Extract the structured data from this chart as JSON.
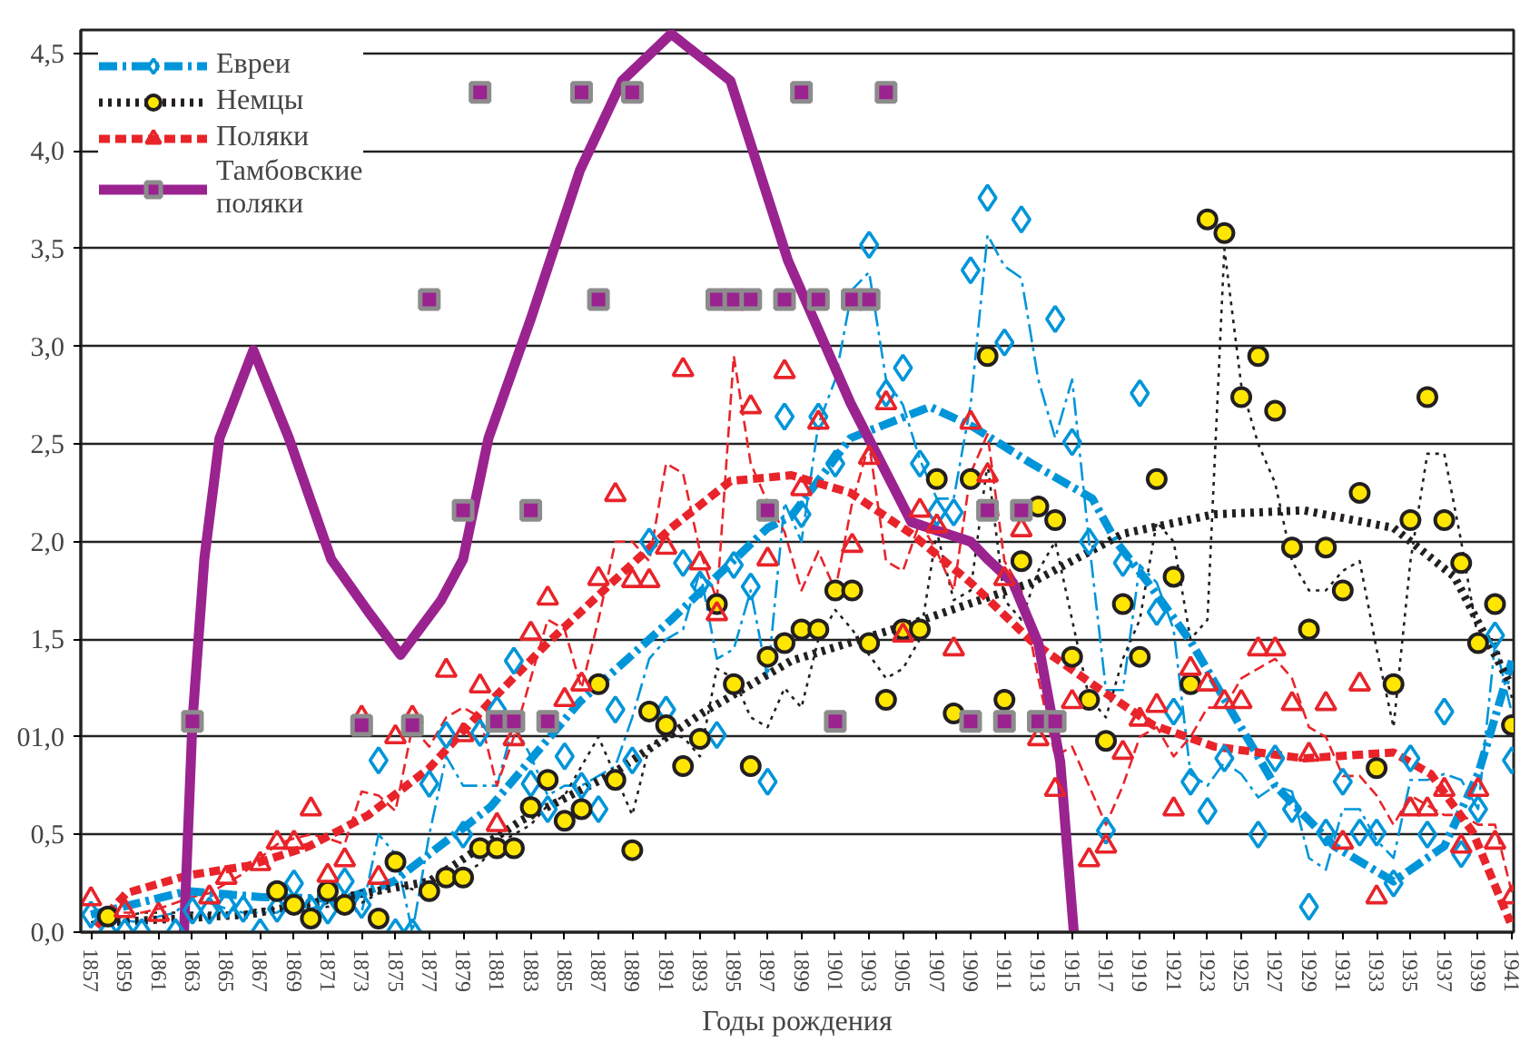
{
  "chart_data": {
    "type": "scatter",
    "xlabel": "Годы рождения",
    "x": [
      1857,
      1858,
      1859,
      1860,
      1861,
      1862,
      1863,
      1864,
      1865,
      1866,
      1867,
      1868,
      1869,
      1870,
      1871,
      1872,
      1873,
      1874,
      1875,
      1876,
      1877,
      1878,
      1879,
      1880,
      1881,
      1882,
      1883,
      1884,
      1885,
      1886,
      1887,
      1888,
      1889,
      1890,
      1891,
      1892,
      1893,
      1894,
      1895,
      1896,
      1897,
      1898,
      1899,
      1900,
      1901,
      1902,
      1903,
      1904,
      1905,
      1906,
      1907,
      1908,
      1909,
      1910,
      1911,
      1912,
      1913,
      1914,
      1915,
      1916,
      1917,
      1918,
      1919,
      1920,
      1921,
      1922,
      1923,
      1924,
      1925,
      1926,
      1927,
      1928,
      1929,
      1930,
      1931,
      1932,
      1933,
      1934,
      1935,
      1936,
      1937,
      1938,
      1939,
      1940,
      1941
    ],
    "xlim": [
      1856.4,
      1941.1
    ],
    "xticks": [
      1857,
      1859,
      1861,
      1863,
      1865,
      1867,
      1869,
      1871,
      1873,
      1875,
      1877,
      1879,
      1881,
      1883,
      1885,
      1887,
      1889,
      1891,
      1893,
      1895,
      1897,
      1899,
      1901,
      1903,
      1905,
      1907,
      1909,
      1911,
      1913,
      1915,
      1917,
      1919,
      1921,
      1923,
      1925,
      1927,
      1929,
      1931,
      1933,
      1935,
      1937,
      1939,
      1941
    ],
    "ylim": [
      0,
      4.62
    ],
    "yticks": [
      {
        "value": 0,
        "label": "0,0"
      },
      {
        "value": 0.5,
        "label": "0,5"
      },
      {
        "value": 1,
        "label": "01,0"
      },
      {
        "value": 1.5,
        "label": "1,5"
      },
      {
        "value": 2,
        "label": "2,0"
      },
      {
        "value": 2.5,
        "label": "2,5"
      },
      {
        "value": 3,
        "label": "3,0"
      },
      {
        "value": 3.5,
        "label": "3,5"
      },
      {
        "value": 4,
        "label": "4,0"
      },
      {
        "value": 4.5,
        "label": "4,5"
      }
    ],
    "grid": "y",
    "legend": "top left",
    "series": [
      {
        "type": "line",
        "color": "#0095d9",
        "line_style": "dashdot",
        "values": [
          0.09,
          0.08,
          0.06,
          0.05,
          0.08,
          0.1,
          0.2,
          0.15,
          0.12,
          0.1,
          0.1,
          0.1,
          0.15,
          0.12,
          0.15,
          0.12,
          0.1,
          0.5,
          0.4,
          0.0,
          0.5,
          0.9,
          0.75,
          0.75,
          0.75,
          1.07,
          0.9,
          0.7,
          0.75,
          0.75,
          0.8,
          0.85,
          1.1,
          1.4,
          1.5,
          1.55,
          1.85,
          1.4,
          1.45,
          1.75,
          1.3,
          2.2,
          2.0,
          2.6,
          2.83,
          3.29,
          3.38,
          2.83,
          2.7,
          2.42,
          2.22,
          2.22,
          2.7,
          3.57,
          3.41,
          3.35,
          2.83,
          2.53,
          2.83,
          2.0,
          1.24,
          1.24,
          1.88,
          1.79,
          1.55,
          0.81,
          0.75,
          0.87,
          0.81,
          0.69,
          0.75,
          0.72,
          0.38,
          0.32,
          0.63,
          0.63,
          0.47,
          0.38,
          0.78,
          0.78,
          0.81,
          0.78,
          0.63,
          1.48,
          1.12
        ]
      },
      {
        "type": "line",
        "color": "#231f20",
        "line_style": "dotted",
        "values": [
          0.05,
          0.07,
          0.08,
          0.1,
          0.1,
          0.1,
          0.1,
          0.1,
          0.1,
          0.1,
          0.12,
          0.12,
          0.12,
          0.12,
          0.13,
          0.14,
          0.15,
          0.2,
          0.25,
          0.22,
          0.2,
          0.25,
          0.3,
          0.35,
          0.45,
          0.5,
          0.55,
          0.65,
          0.7,
          0.85,
          1.0,
          0.8,
          0.6,
          0.95,
          1.0,
          1.0,
          0.9,
          1.35,
          1.3,
          1.1,
          1.05,
          1.25,
          1.15,
          1.5,
          1.65,
          1.55,
          1.42,
          1.3,
          1.35,
          1.5,
          2.05,
          1.7,
          1.75,
          2.4,
          1.7,
          1.6,
          1.85,
          2.0,
          1.6,
          1.2,
          1.1,
          1.4,
          1.6,
          2.1,
          2.0,
          1.5,
          1.6,
          3.5,
          2.8,
          2.5,
          2.3,
          1.9,
          1.75,
          1.75,
          1.85,
          1.9,
          1.45,
          1.05,
          1.9,
          2.45,
          2.45,
          2.0,
          1.5,
          1.5,
          1.2
        ]
      },
      {
        "type": "line",
        "color": "#e8242a",
        "line_style": "dashed",
        "values": [
          0.1,
          0.1,
          0.1,
          0.1,
          0.12,
          0.15,
          0.18,
          0.2,
          0.25,
          0.3,
          0.38,
          0.45,
          0.48,
          0.5,
          0.48,
          0.45,
          0.72,
          0.7,
          0.62,
          1.05,
          0.95,
          1.1,
          1.15,
          1.1,
          0.75,
          1.0,
          1.3,
          1.6,
          1.55,
          1.25,
          1.6,
          2.0,
          2.0,
          1.9,
          2.4,
          2.35,
          1.95,
          1.7,
          2.95,
          2.4,
          2.2,
          2.05,
          1.75,
          1.95,
          1.75,
          2.2,
          2.5,
          1.9,
          1.85,
          2.1,
          1.95,
          1.75,
          2.35,
          2.55,
          1.9,
          1.75,
          1.3,
          0.9,
          0.95,
          0.75,
          0.55,
          0.75,
          1.0,
          1.05,
          0.9,
          1.0,
          1.15,
          1.15,
          1.3,
          1.35,
          1.4,
          1.3,
          1.05,
          1.0,
          0.8,
          0.8,
          0.7,
          0.55,
          0.7,
          0.65,
          0.6,
          0.6,
          0.55,
          0.55,
          0.2
        ]
      },
      {
        "name": "Евреи",
        "color": "#0095d9",
        "marker": "diamond",
        "values": [
          0.09,
          0,
          0,
          0,
          null,
          0,
          0.11,
          0.11,
          0.14,
          0.12,
          0,
          0.12,
          0.25,
          0.12,
          0.11,
          0.26,
          0.14,
          0.88,
          0,
          0,
          0.76,
          1.01,
          0.5,
          1.02,
          1.14,
          1.39,
          0.76,
          0.63,
          0.9,
          0.75,
          0.63,
          1.14,
          0.88,
          2.0,
          1.14,
          1.89,
          1.78,
          1.01,
          1.88,
          1.77,
          0.77,
          2.64,
          2.14,
          2.64,
          2.4,
          null,
          3.52,
          2.76,
          2.89,
          2.4,
          2.15,
          2.15,
          3.39,
          3.76,
          3.02,
          3.65,
          null,
          3.14,
          2.51,
          2.0,
          0.52,
          1.89,
          2.76,
          1.64,
          1.13,
          0.77,
          0.62,
          0.89,
          null,
          0.5,
          0.89,
          0.63,
          0.13,
          0.51,
          0.77,
          0.51,
          0.51,
          0.25,
          0.89,
          0.5,
          1.13,
          0.4,
          0.63,
          1.52,
          0.88
        ]
      },
      {
        "type": "line",
        "color": "#0095d9",
        "line_style": "dashdot",
        "x": [
          1857,
          1862.7,
          1867,
          1872,
          1874.9,
          1880.6,
          1885.9,
          1891.3,
          1897,
          1898.4,
          1901.9,
          1906.6,
          1909.1,
          1912.6,
          1916.2,
          1917.6,
          1919.4,
          1922,
          1927,
          1930.5,
          1934,
          1937,
          1939,
          1941
        ],
        "values": [
          0.09,
          0.21,
          0.18,
          0.17,
          0.26,
          0.64,
          1.18,
          1.6,
          2.07,
          2.13,
          2.53,
          2.69,
          2.59,
          2.4,
          2.22,
          2.0,
          1.8,
          1.49,
          0.75,
          0.44,
          0.26,
          0.44,
          0.81,
          1.39
        ]
      },
      {
        "name": "Немцы",
        "color": "#ffe600",
        "marker": "circle",
        "values": [
          null,
          0.08,
          null,
          null,
          null,
          null,
          null,
          null,
          null,
          null,
          null,
          0.21,
          0.14,
          0.07,
          0.21,
          0.14,
          null,
          0.07,
          0.36,
          null,
          0.21,
          0.28,
          0.28,
          0.43,
          0.43,
          0.43,
          0.64,
          0.78,
          0.57,
          0.63,
          1.27,
          0.78,
          0.42,
          1.13,
          1.06,
          0.85,
          0.99,
          1.68,
          1.27,
          0.85,
          1.41,
          1.48,
          1.55,
          1.55,
          1.75,
          1.75,
          1.48,
          1.19,
          1.55,
          1.55,
          2.32,
          1.12,
          2.32,
          2.95,
          1.19,
          1.9,
          2.18,
          2.11,
          1.41,
          1.19,
          0.98,
          1.68,
          1.41,
          2.32,
          1.82,
          1.27,
          3.65,
          3.58,
          2.74,
          2.95,
          2.67,
          1.97,
          1.55,
          1.97,
          1.75,
          2.25,
          0.84,
          1.27,
          2.11,
          2.74,
          2.11,
          1.89,
          1.48,
          1.68,
          1.06
        ]
      },
      {
        "type": "line",
        "color": "#231f20",
        "line_style": "dotted",
        "x": [
          1858,
          1866.3,
          1877,
          1882.4,
          1887.8,
          1893.1,
          1898.4,
          1905.5,
          1912.6,
          1918,
          1923.4,
          1928.7,
          1934,
          1937.6,
          1940.9
        ],
        "values": [
          0.05,
          0.09,
          0.26,
          0.57,
          0.81,
          1.12,
          1.39,
          1.58,
          1.79,
          2.04,
          2.14,
          2.16,
          2.07,
          1.82,
          1.27
        ]
      },
      {
        "name": "Поляки",
        "color": "#e8242a",
        "marker": "triangle",
        "values": [
          0.17,
          null,
          0.11,
          null,
          0.09,
          null,
          null,
          0.18,
          0.28,
          null,
          0.35,
          0.46,
          0.46,
          0.63,
          0.29,
          0.37,
          1.1,
          0.28,
          1.0,
          1.1,
          null,
          1.34,
          1.01,
          1.26,
          0.55,
          0.99,
          1.53,
          1.71,
          1.19,
          1.27,
          1.81,
          2.24,
          1.8,
          1.8,
          1.97,
          2.88,
          1.89,
          1.63,
          3.22,
          2.69,
          1.91,
          2.87,
          2.27,
          2.61,
          null,
          1.98,
          2.43,
          2.71,
          1.52,
          2.16,
          2.08,
          1.45,
          2.61,
          2.34,
          1.81,
          2.06,
          0.99,
          0.73,
          1.18,
          0.37,
          0.44,
          0.92,
          1.09,
          1.16,
          0.63,
          1.35,
          1.27,
          1.18,
          1.18,
          1.45,
          1.45,
          1.17,
          0.91,
          1.17,
          0.46,
          1.27,
          0.18,
          null,
          0.63,
          0.63,
          0.73,
          0.44,
          0.73,
          0.46,
          0.18
        ]
      },
      {
        "type": "line",
        "color": "#e8242a",
        "line_style": "dashed",
        "x": [
          1857.3,
          1859.1,
          1862.7,
          1866.3,
          1869.9,
          1873.4,
          1877,
          1880.6,
          1884.1,
          1887.8,
          1891.3,
          1894.8,
          1898.4,
          1901.9,
          1905.5,
          1909,
          1912.6,
          1916.2,
          1919.8,
          1923.4,
          1928.7,
          1934,
          1936.2,
          1938.7,
          1940.9
        ],
        "values": [
          0.03,
          0.2,
          0.29,
          0.34,
          0.44,
          0.6,
          0.84,
          1.18,
          1.49,
          1.79,
          2.07,
          2.31,
          2.34,
          2.25,
          2.04,
          1.79,
          1.49,
          1.27,
          1.06,
          0.95,
          0.89,
          0.92,
          0.81,
          0.51,
          0.05
        ]
      },
      {
        "name": "Тамбовские поляки",
        "color": "#9b2390",
        "marker": "square",
        "x": [
          1863,
          1873,
          1876,
          1877,
          1879,
          1880,
          1881,
          1882,
          1883,
          1884,
          1886,
          1887,
          1889,
          1894,
          1895,
          1896,
          1897,
          1898,
          1899,
          1900,
          1901,
          1902,
          1903,
          1904,
          1909,
          1910,
          1911,
          1912,
          1913,
          1914
        ],
        "values": [
          1.08,
          1.06,
          1.06,
          3.24,
          2.16,
          4.3,
          1.08,
          1.08,
          2.16,
          1.08,
          4.3,
          3.24,
          4.3,
          3.24,
          3.24,
          3.24,
          2.16,
          3.24,
          4.3,
          3.24,
          1.08,
          3.24,
          3.24,
          4.3,
          1.08,
          2.16,
          1.08,
          2.16,
          1.08,
          1.08
        ]
      },
      {
        "type": "line",
        "color": "#9b2390",
        "line_style": "solid",
        "x": [
          1862.5,
          1863,
          1863.7,
          1864.6,
          1866.6,
          1868.7,
          1871.2,
          1873.4,
          1875.3,
          1877.7,
          1879,
          1880.5,
          1883,
          1885.9,
          1888.4,
          1891.3,
          1894.8,
          1898.2,
          1901.9,
          1905.5,
          1909,
          1910,
          1911.5,
          1913,
          1914.3,
          1915.1
        ],
        "values": [
          0,
          1.08,
          1.91,
          2.53,
          2.98,
          2.53,
          1.91,
          1.64,
          1.42,
          1.7,
          1.91,
          2.53,
          3.14,
          3.9,
          4.36,
          4.6,
          4.36,
          3.44,
          2.71,
          2.1,
          2.0,
          1.91,
          1.79,
          1.48,
          0.87,
          0
        ]
      }
    ]
  }
}
